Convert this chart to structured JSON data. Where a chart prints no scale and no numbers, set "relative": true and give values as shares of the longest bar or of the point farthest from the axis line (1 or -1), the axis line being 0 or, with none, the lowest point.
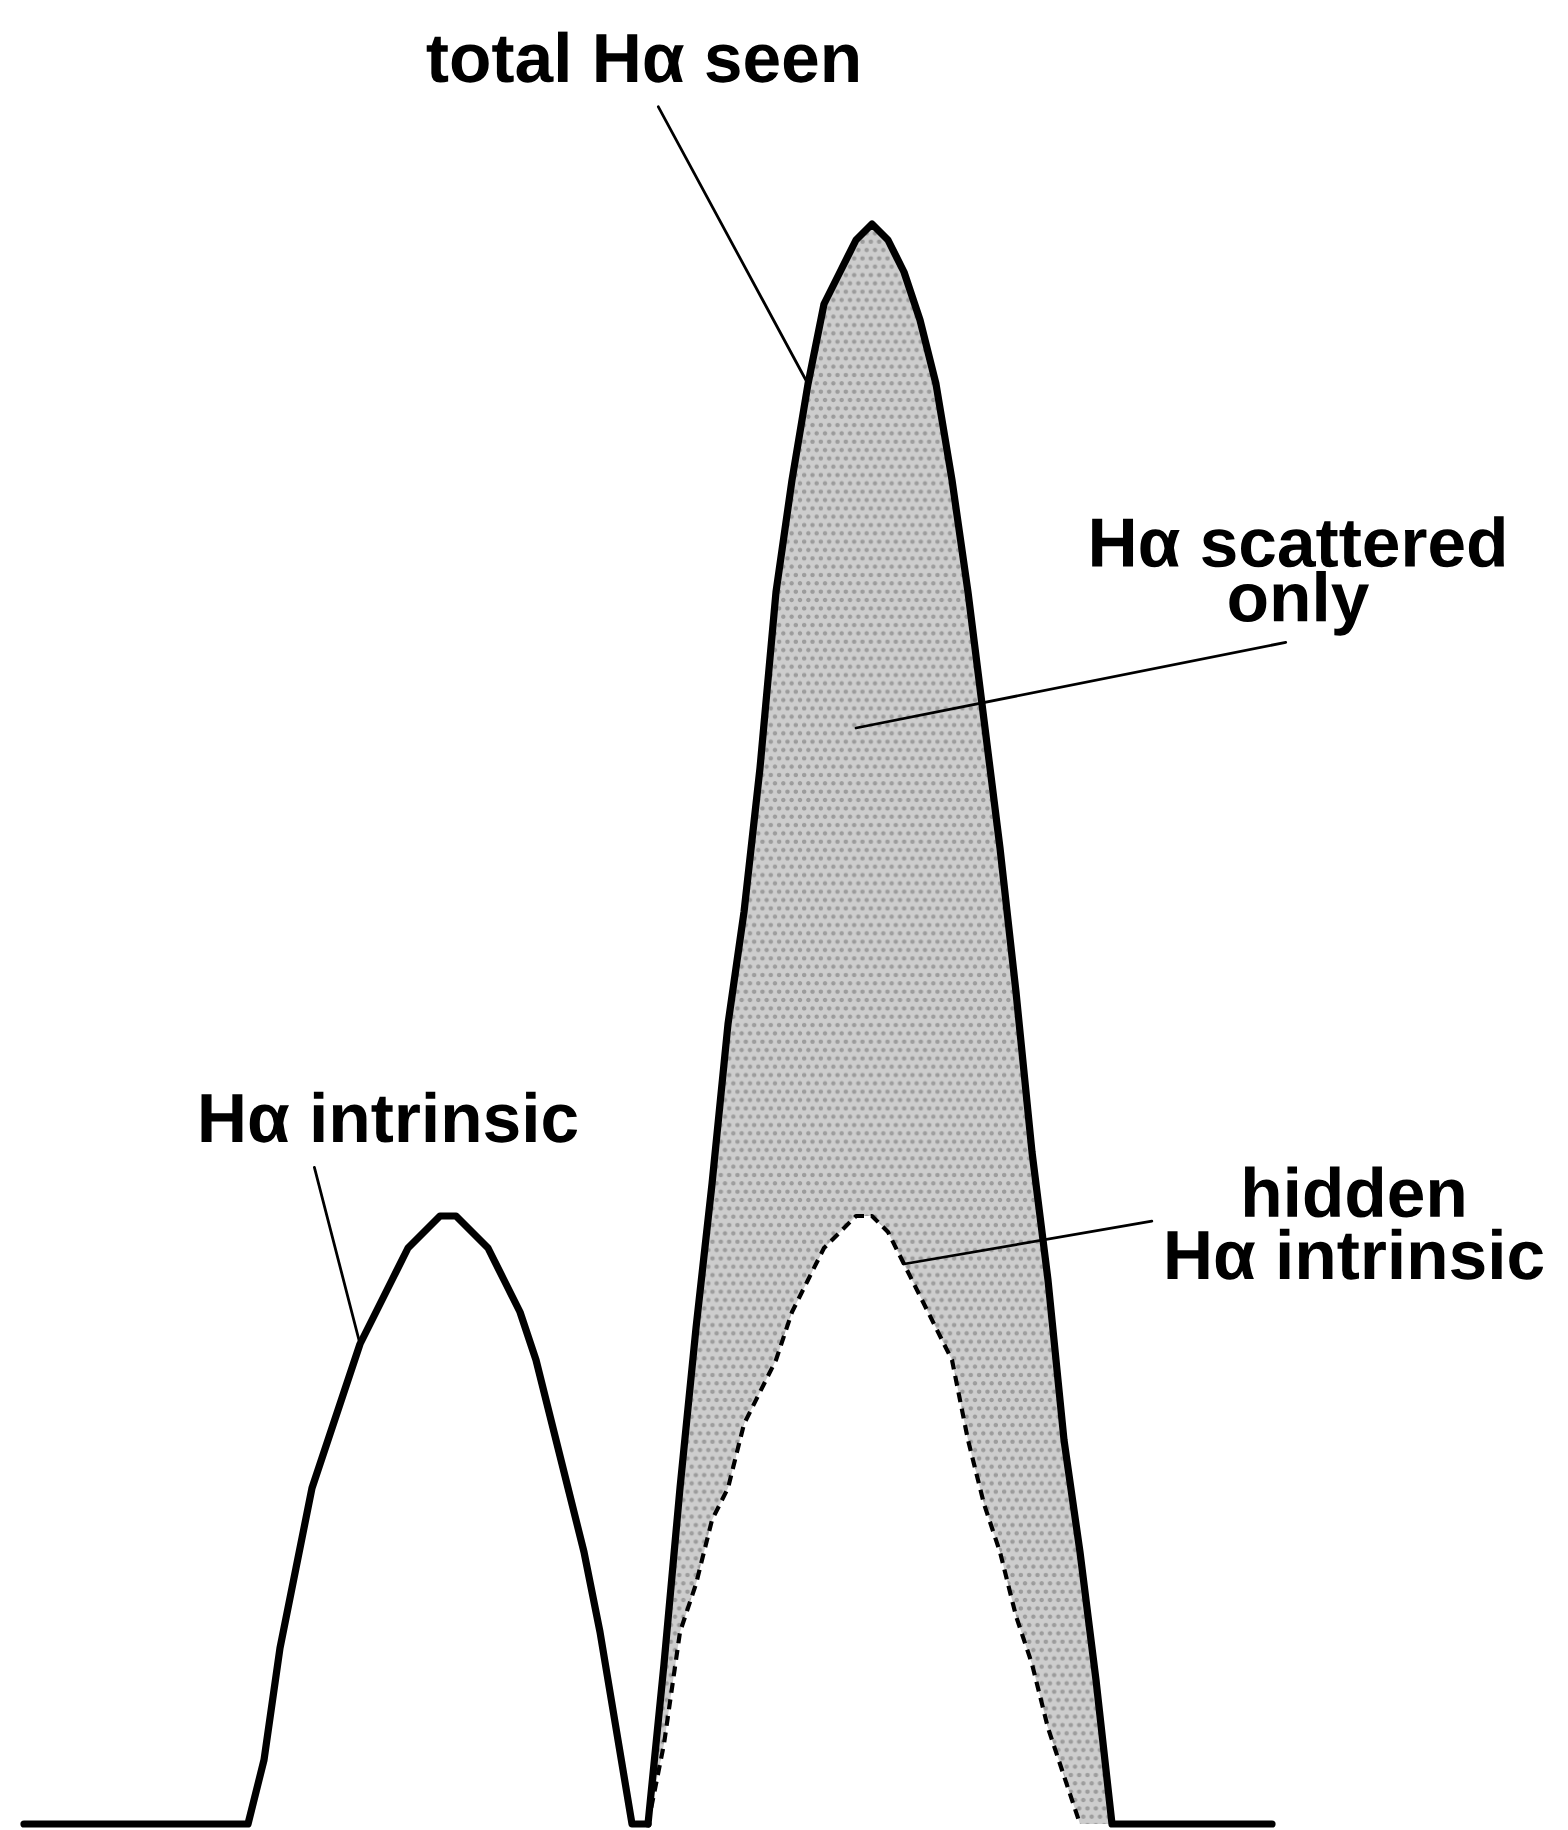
{
  "chart_data": {
    "type": "line",
    "relative": true,
    "categories": [
      null,
      null,
      null,
      null,
      null,
      null,
      null,
      null,
      null,
      null,
      null,
      null,
      null,
      null,
      null,
      null,
      null,
      null,
      null,
      null,
      null,
      null,
      null,
      null,
      null,
      null,
      null,
      null,
      null,
      null,
      null,
      null,
      null,
      null,
      null,
      null,
      null,
      null,
      null,
      null,
      null,
      null,
      null,
      null,
      null,
      null,
      null,
      null,
      null,
      null,
      null,
      null,
      null,
      null,
      null,
      null,
      null,
      null,
      null,
      null,
      null,
      null,
      null,
      null,
      null,
      null,
      null,
      null,
      null,
      null,
      null,
      null,
      null,
      null,
      null,
      null,
      null,
      null,
      null
    ],
    "series": [
      {
        "name": "Hα intrinsic",
        "color": "#000000",
        "values": [
          0,
          0,
          0,
          0,
          0,
          0,
          0,
          0,
          0,
          0,
          0,
          0,
          0,
          0,
          0,
          0.04,
          0.11,
          0.16,
          0.21,
          0.24,
          0.27,
          0.3,
          0.32,
          0.34,
          0.36,
          0.37,
          0.38,
          0.38,
          0.37,
          0.36,
          0.34,
          0.32,
          0.29,
          0.25,
          0.21,
          0.17,
          0.12,
          0.06,
          0,
          0,
          null,
          null,
          null,
          null,
          null,
          null,
          null,
          null,
          null,
          null,
          null,
          null,
          null,
          null,
          null,
          null,
          null,
          null,
          null,
          null,
          null,
          null,
          null,
          null,
          null,
          null,
          null,
          null,
          null,
          null,
          null,
          null,
          null,
          null,
          null,
          null,
          null,
          null,
          null
        ]
      },
      {
        "name": "total Hα seen",
        "color": "#000000",
        "values": [
          null,
          null,
          null,
          null,
          null,
          null,
          null,
          null,
          null,
          null,
          null,
          null,
          null,
          null,
          null,
          null,
          null,
          null,
          null,
          null,
          null,
          null,
          null,
          null,
          null,
          null,
          null,
          null,
          null,
          null,
          null,
          null,
          null,
          null,
          null,
          null,
          null,
          null,
          null,
          0,
          0.1,
          0.21,
          0.31,
          0.4,
          0.5,
          0.57,
          0.66,
          0.77,
          0.84,
          0.9,
          0.95,
          0.97,
          0.99,
          1,
          0.99,
          0.97,
          0.94,
          0.9,
          0.84,
          0.77,
          0.69,
          0.61,
          0.52,
          0.42,
          0.34,
          0.24,
          0.17,
          0.09,
          0,
          0,
          0,
          0,
          0,
          0,
          0,
          0,
          0,
          0,
          0
        ],
        "lower": [
          null,
          null,
          null,
          null,
          null,
          null,
          null,
          null,
          null,
          null,
          null,
          null,
          null,
          null,
          null,
          null,
          null,
          null,
          null,
          null,
          null,
          null,
          null,
          null,
          null,
          null,
          null,
          null,
          null,
          null,
          null,
          null,
          null,
          null,
          null,
          null,
          null,
          null,
          null,
          0,
          0.05,
          0.12,
          0.15,
          0.19,
          0.21,
          0.25,
          0.27,
          0.29,
          0.32,
          0.34,
          0.36,
          0.37,
          0.38,
          0.38,
          0.37,
          0.35,
          0.33,
          0.31,
          0.29,
          0.24,
          0.2,
          0.17,
          0.13,
          0.1,
          0.06,
          0.03,
          0,
          0,
          0,
          null,
          null,
          null,
          null,
          null,
          null,
          null,
          null,
          null,
          null
        ],
        "upper": [
          null,
          null,
          null,
          null,
          null,
          null,
          null,
          null,
          null,
          null,
          null,
          null,
          null,
          null,
          null,
          null,
          null,
          null,
          null,
          null,
          null,
          null,
          null,
          null,
          null,
          null,
          null,
          null,
          null,
          null,
          null,
          null,
          null,
          null,
          null,
          null,
          null,
          null,
          null,
          0,
          0.1,
          0.21,
          0.31,
          0.4,
          0.5,
          0.57,
          0.66,
          0.77,
          0.84,
          0.9,
          0.95,
          0.97,
          0.99,
          1,
          0.99,
          0.97,
          0.94,
          0.9,
          0.84,
          0.77,
          0.69,
          0.61,
          0.52,
          0.42,
          0.34,
          0.24,
          0.17,
          0.09,
          0,
          null,
          null,
          null,
          null,
          null,
          null,
          null,
          null,
          null,
          null
        ]
      },
      {
        "name": "hidden\nHα intrinsic",
        "color": "#000000",
        "line_style": "dashed",
        "values": [
          null,
          null,
          null,
          null,
          null,
          null,
          null,
          null,
          null,
          null,
          null,
          null,
          null,
          null,
          null,
          null,
          null,
          null,
          null,
          null,
          null,
          null,
          null,
          null,
          null,
          null,
          null,
          null,
          null,
          null,
          null,
          null,
          null,
          null,
          null,
          null,
          null,
          null,
          null,
          0,
          0.05,
          0.12,
          0.15,
          0.19,
          0.21,
          0.25,
          0.27,
          0.29,
          0.32,
          0.34,
          0.36,
          0.37,
          0.38,
          0.38,
          0.37,
          0.35,
          0.33,
          0.31,
          0.29,
          0.24,
          0.2,
          0.17,
          0.13,
          0.1,
          0.06,
          0.03,
          0,
          null,
          null,
          null,
          null,
          null,
          null,
          null,
          null,
          null,
          null,
          null,
          null
        ]
      }
    ],
    "annotations": [
      "Hα scattered\nonly"
    ]
  }
}
